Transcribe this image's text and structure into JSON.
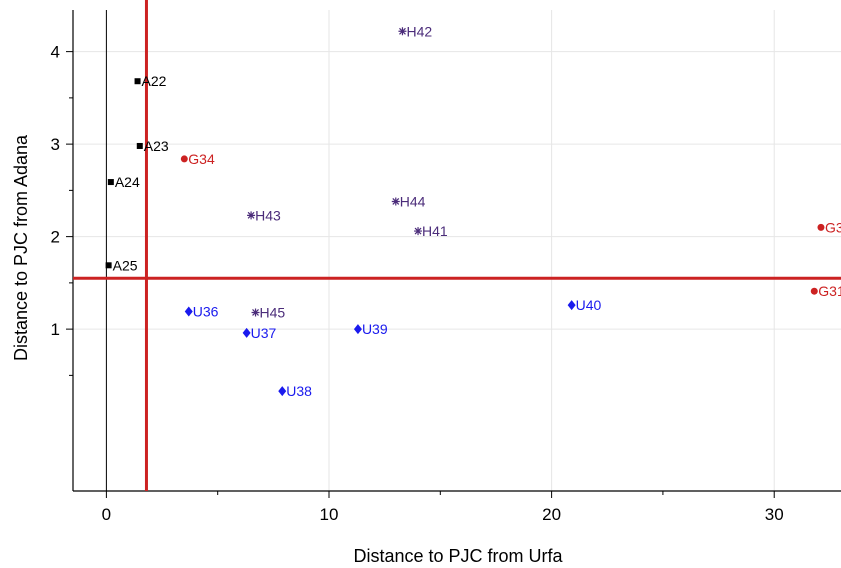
{
  "chart_data": {
    "type": "scatter",
    "xlabel": "Distance to PJC from Urfa",
    "ylabel": "Distance to PJC from Adana",
    "xlim": [
      -1.5,
      33
    ],
    "ylim": [
      -0.75,
      4.45
    ],
    "xticks": [
      0,
      10,
      20,
      30
    ],
    "yticks": [
      1,
      2,
      3,
      4
    ],
    "grid": true,
    "reference_lines": {
      "color": "#cc2222",
      "vertical_x": 1.8,
      "horizontal_y": 1.55
    },
    "series": [
      {
        "marker": "square",
        "color": "#000000",
        "points": [
          {
            "label": "A22",
            "x": 1.4,
            "y": 3.68
          },
          {
            "label": "A23",
            "x": 1.5,
            "y": 2.98
          },
          {
            "label": "A24",
            "x": 0.2,
            "y": 2.59
          },
          {
            "label": "A25",
            "x": 0.1,
            "y": 1.69
          }
        ]
      },
      {
        "marker": "circle",
        "color": "#cc2222",
        "points": [
          {
            "label": "G34",
            "x": 3.5,
            "y": 2.84
          },
          {
            "label": "G3",
            "x": 32.1,
            "y": 2.1
          },
          {
            "label": "G31",
            "x": 31.8,
            "y": 1.41
          }
        ]
      },
      {
        "marker": "asterisk",
        "color": "#4b2c7a",
        "points": [
          {
            "label": "H42",
            "x": 13.3,
            "y": 4.22
          },
          {
            "label": "H44",
            "x": 13.0,
            "y": 2.38
          },
          {
            "label": "H43",
            "x": 6.5,
            "y": 2.23
          },
          {
            "label": "H41",
            "x": 14.0,
            "y": 2.06
          },
          {
            "label": "H45",
            "x": 6.7,
            "y": 1.18
          }
        ]
      },
      {
        "marker": "diamond",
        "color": "#1a1aee",
        "points": [
          {
            "label": "U36",
            "x": 3.7,
            "y": 1.19
          },
          {
            "label": "U37",
            "x": 6.3,
            "y": 0.96
          },
          {
            "label": "U38",
            "x": 7.9,
            "y": 0.33
          },
          {
            "label": "U39",
            "x": 11.3,
            "y": 1.0
          },
          {
            "label": "U40",
            "x": 20.9,
            "y": 1.26
          }
        ]
      }
    ]
  }
}
